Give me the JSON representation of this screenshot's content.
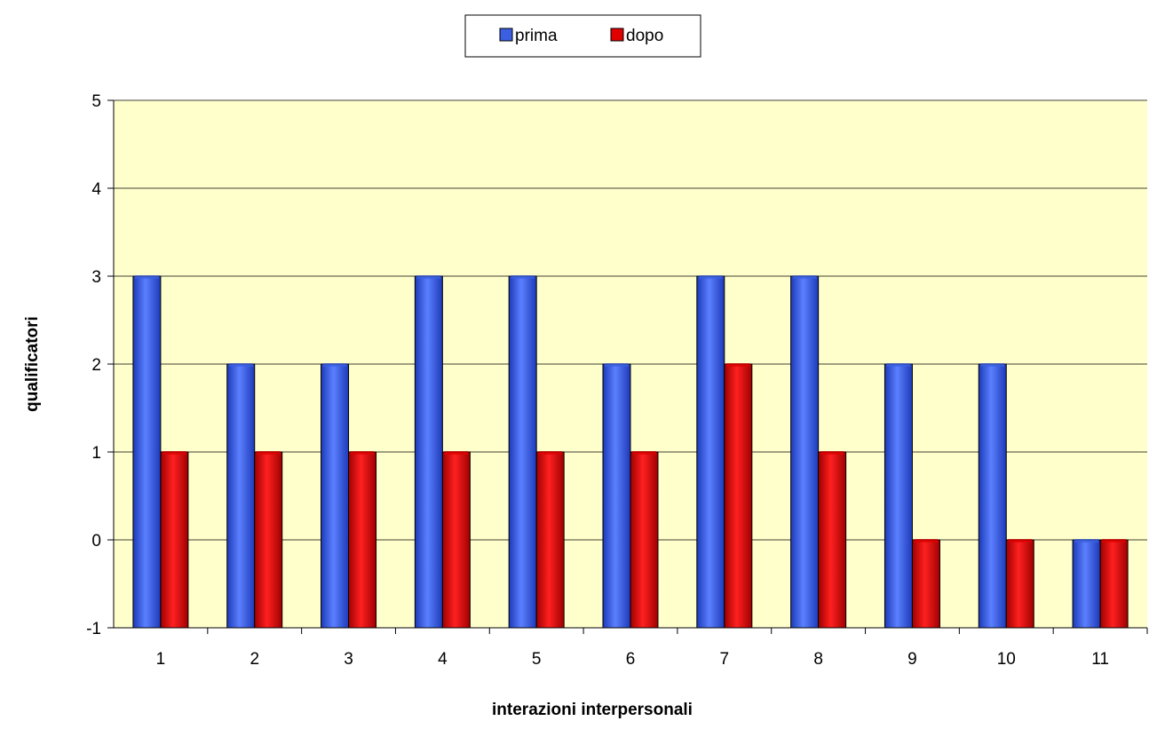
{
  "chart_data": {
    "type": "bar",
    "title": "",
    "xlabel": "interazioni interpersonali",
    "ylabel": "qualificatori",
    "categories": [
      "1",
      "2",
      "3",
      "4",
      "5",
      "6",
      "7",
      "8",
      "9",
      "10",
      "11"
    ],
    "series": [
      {
        "name": "prima",
        "values": [
          3,
          2,
          2,
          3,
          3,
          2,
          3,
          3,
          2,
          2,
          0
        ],
        "color": "#3b5fe0"
      },
      {
        "name": "dopo",
        "values": [
          1,
          1,
          1,
          1,
          1,
          1,
          2,
          1,
          0,
          0,
          0
        ],
        "color": "#e00000"
      }
    ],
    "ylim": [
      -1,
      5
    ],
    "yticks": [
      "-1",
      "0",
      "1",
      "2",
      "3",
      "4",
      "5"
    ],
    "grid": true,
    "legend": "top-center",
    "plot_background": "#ffffcc"
  }
}
